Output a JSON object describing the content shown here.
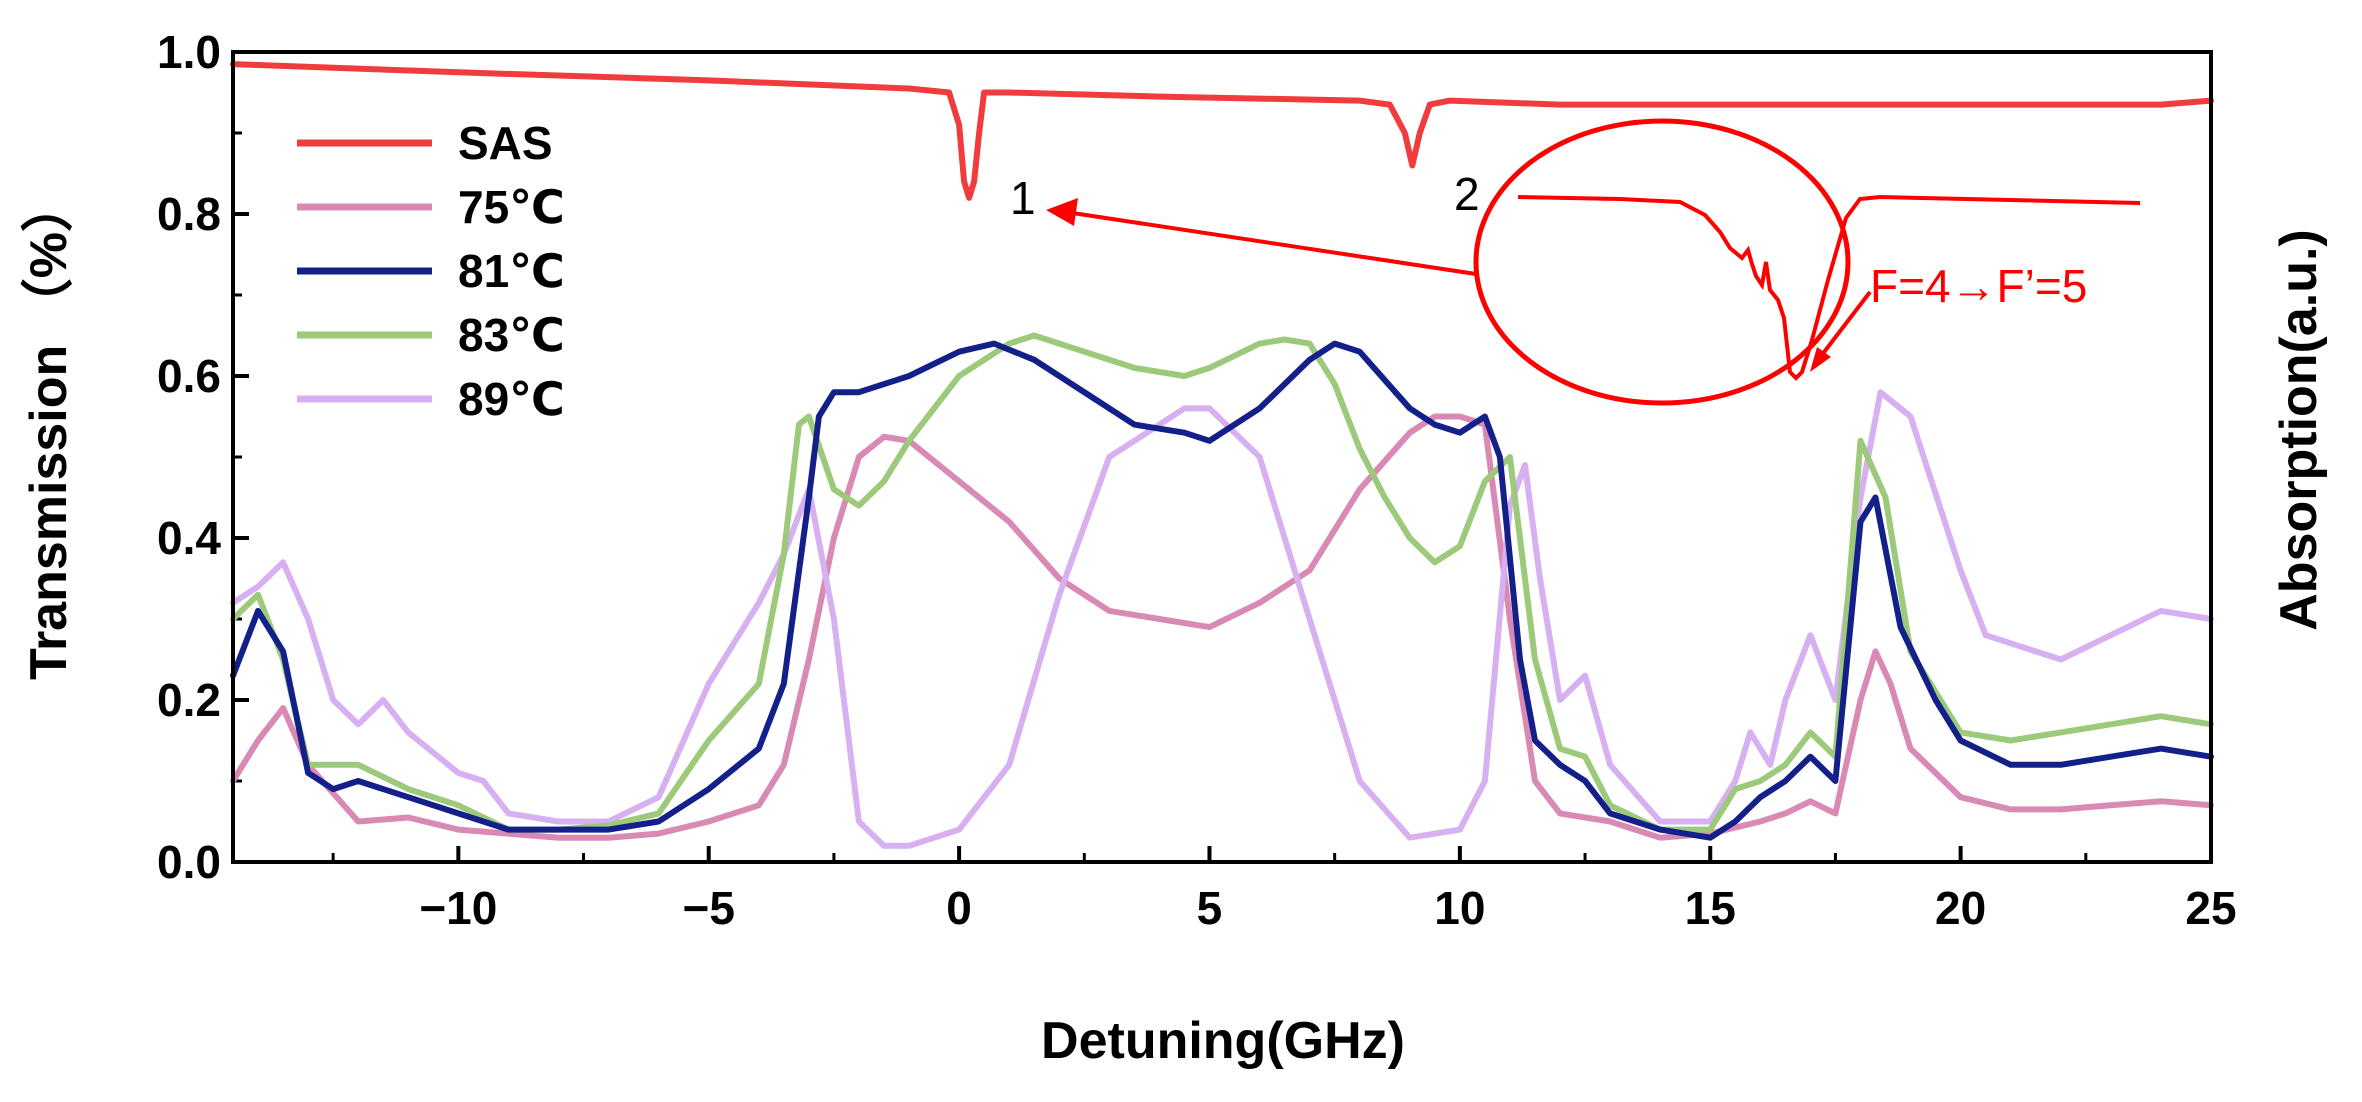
{
  "chart_data": {
    "type": "line",
    "xlabel": "Detuning(GHz)",
    "ylabel": "Transmission （%）",
    "ylabel_right": "Absorption(a.u.)",
    "xlim": [
      -14.5,
      25
    ],
    "ylim": [
      0,
      1.0
    ],
    "xticks": [
      -10,
      -5,
      0,
      5,
      10,
      15,
      20,
      25
    ],
    "xtick_labels": [
      "−10",
      "−5",
      "0",
      "5",
      "10",
      "15",
      "20",
      "25"
    ],
    "yticks": [
      0.0,
      0.2,
      0.4,
      0.6,
      0.8,
      1.0
    ],
    "ytick_labels": [
      "0.0",
      "0.2",
      "0.4",
      "0.6",
      "0.8",
      "1.0"
    ],
    "legend_position": "top-left",
    "series": [
      {
        "name": "SAS",
        "color": "#f03c3c",
        "x": [
          -14.5,
          -10,
          -5,
          -1,
          -0.2,
          0,
          0.1,
          0.2,
          0.3,
          0.4,
          0.5,
          1,
          4,
          8,
          8.6,
          8.9,
          9.05,
          9.2,
          9.4,
          9.8,
          12,
          16,
          20,
          24,
          25
        ],
        "y": [
          0.985,
          0.975,
          0.965,
          0.955,
          0.95,
          0.91,
          0.84,
          0.82,
          0.84,
          0.9,
          0.95,
          0.95,
          0.945,
          0.94,
          0.935,
          0.9,
          0.86,
          0.9,
          0.935,
          0.94,
          0.935,
          0.935,
          0.935,
          0.935,
          0.94
        ]
      },
      {
        "name": "75℃",
        "color": "#d98ab4",
        "x": [
          -14.5,
          -14,
          -13.5,
          -13,
          -12,
          -11,
          -10,
          -9,
          -8,
          -7,
          -6,
          -5,
          -4,
          -3.5,
          -3,
          -2.5,
          -2,
          -1.5,
          -1,
          0,
          1,
          2,
          3,
          4,
          5,
          6,
          7,
          8,
          9,
          9.5,
          10,
          10.5,
          11,
          11.5,
          12,
          13,
          14,
          15,
          16,
          16.5,
          17,
          17.5,
          18,
          18.3,
          18.6,
          19,
          20,
          21,
          22,
          23,
          24,
          25
        ],
        "y": [
          0.1,
          0.15,
          0.19,
          0.12,
          0.05,
          0.055,
          0.04,
          0.035,
          0.03,
          0.03,
          0.035,
          0.05,
          0.07,
          0.12,
          0.25,
          0.4,
          0.5,
          0.525,
          0.52,
          0.47,
          0.42,
          0.35,
          0.31,
          0.3,
          0.29,
          0.32,
          0.36,
          0.46,
          0.53,
          0.55,
          0.55,
          0.54,
          0.3,
          0.1,
          0.06,
          0.05,
          0.03,
          0.035,
          0.05,
          0.06,
          0.075,
          0.06,
          0.2,
          0.26,
          0.22,
          0.14,
          0.08,
          0.065,
          0.065,
          0.07,
          0.075,
          0.07
        ]
      },
      {
        "name": "81℃",
        "color": "#14208a",
        "x": [
          -14.5,
          -14,
          -13.5,
          -13,
          -12.5,
          -12,
          -11,
          -10,
          -9,
          -8,
          -7,
          -6,
          -5,
          -4,
          -3.5,
          -3,
          -2.8,
          -2.5,
          -2,
          -1,
          0,
          0.7,
          1.5,
          2.5,
          3.5,
          4.5,
          5,
          6,
          7,
          7.5,
          8,
          9,
          9.5,
          10,
          10.5,
          10.8,
          11.2,
          11.5,
          12,
          12.5,
          13,
          14,
          15,
          15.5,
          16,
          16.5,
          17,
          17.5,
          18,
          18.3,
          18.8,
          19.5,
          20,
          21,
          22,
          23,
          24,
          25
        ],
        "y": [
          0.23,
          0.31,
          0.26,
          0.11,
          0.09,
          0.1,
          0.08,
          0.06,
          0.04,
          0.04,
          0.04,
          0.05,
          0.09,
          0.14,
          0.22,
          0.45,
          0.55,
          0.58,
          0.58,
          0.6,
          0.63,
          0.64,
          0.62,
          0.58,
          0.54,
          0.53,
          0.52,
          0.56,
          0.62,
          0.64,
          0.63,
          0.56,
          0.54,
          0.53,
          0.55,
          0.5,
          0.25,
          0.15,
          0.12,
          0.1,
          0.06,
          0.04,
          0.03,
          0.05,
          0.08,
          0.1,
          0.13,
          0.1,
          0.42,
          0.45,
          0.29,
          0.2,
          0.15,
          0.12,
          0.12,
          0.13,
          0.14,
          0.13
        ]
      },
      {
        "name": "83℃",
        "color": "#9cc97a",
        "x": [
          -14.5,
          -14,
          -13.5,
          -13,
          -12,
          -11,
          -10,
          -9,
          -8,
          -7,
          -6,
          -5,
          -4,
          -3.5,
          -3.2,
          -3,
          -2.5,
          -2,
          -1.5,
          -1,
          0,
          1,
          1.5,
          2.5,
          3.5,
          4.5,
          5,
          6,
          6.5,
          7,
          7.5,
          8,
          8.5,
          9,
          9.5,
          10,
          10.5,
          11,
          11.5,
          12,
          12.5,
          13,
          14,
          15,
          15.5,
          16,
          16.5,
          17,
          17.5,
          18,
          18.5,
          19,
          20,
          21,
          22,
          23,
          24,
          25
        ],
        "y": [
          0.3,
          0.33,
          0.25,
          0.12,
          0.12,
          0.09,
          0.07,
          0.04,
          0.04,
          0.045,
          0.06,
          0.15,
          0.22,
          0.38,
          0.54,
          0.55,
          0.46,
          0.44,
          0.47,
          0.52,
          0.6,
          0.64,
          0.65,
          0.63,
          0.61,
          0.6,
          0.61,
          0.64,
          0.645,
          0.64,
          0.59,
          0.51,
          0.45,
          0.4,
          0.37,
          0.39,
          0.47,
          0.5,
          0.25,
          0.14,
          0.13,
          0.07,
          0.04,
          0.04,
          0.09,
          0.1,
          0.12,
          0.16,
          0.13,
          0.52,
          0.45,
          0.26,
          0.16,
          0.15,
          0.16,
          0.17,
          0.18,
          0.17
        ]
      },
      {
        "name": "89℃",
        "color": "#d7b0f2",
        "x": [
          -14.5,
          -14,
          -13.5,
          -13,
          -12.5,
          -12,
          -11.5,
          -11,
          -10,
          -9.5,
          -9,
          -8,
          -7,
          -6,
          -5,
          -4,
          -3.5,
          -3,
          -2.5,
          -2,
          -1.5,
          -1,
          0,
          1,
          2,
          3,
          4,
          4.5,
          5,
          6,
          7,
          8,
          9,
          10,
          10.5,
          11,
          11.3,
          11.6,
          12,
          12.5,
          13,
          14,
          15,
          15.5,
          15.8,
          16.2,
          16.5,
          17,
          17.5,
          18,
          18.4,
          19,
          20,
          20.5,
          21,
          22,
          23,
          24,
          25
        ],
        "y": [
          0.32,
          0.34,
          0.37,
          0.3,
          0.2,
          0.17,
          0.2,
          0.16,
          0.11,
          0.1,
          0.06,
          0.05,
          0.05,
          0.08,
          0.22,
          0.32,
          0.38,
          0.46,
          0.3,
          0.05,
          0.02,
          0.02,
          0.04,
          0.12,
          0.33,
          0.5,
          0.54,
          0.56,
          0.56,
          0.5,
          0.3,
          0.1,
          0.03,
          0.04,
          0.1,
          0.44,
          0.49,
          0.35,
          0.2,
          0.23,
          0.12,
          0.05,
          0.05,
          0.1,
          0.16,
          0.12,
          0.2,
          0.28,
          0.2,
          0.45,
          0.58,
          0.55,
          0.36,
          0.28,
          0.27,
          0.25,
          0.28,
          0.31,
          0.3
        ]
      }
    ],
    "annotations": [
      {
        "text": "1",
        "x": 1.0,
        "y": 0.8
      },
      {
        "text": "2",
        "x": 11.4,
        "y": 0.82
      },
      {
        "text": "F=4→F’=5",
        "color": "#ff0000"
      }
    ]
  }
}
